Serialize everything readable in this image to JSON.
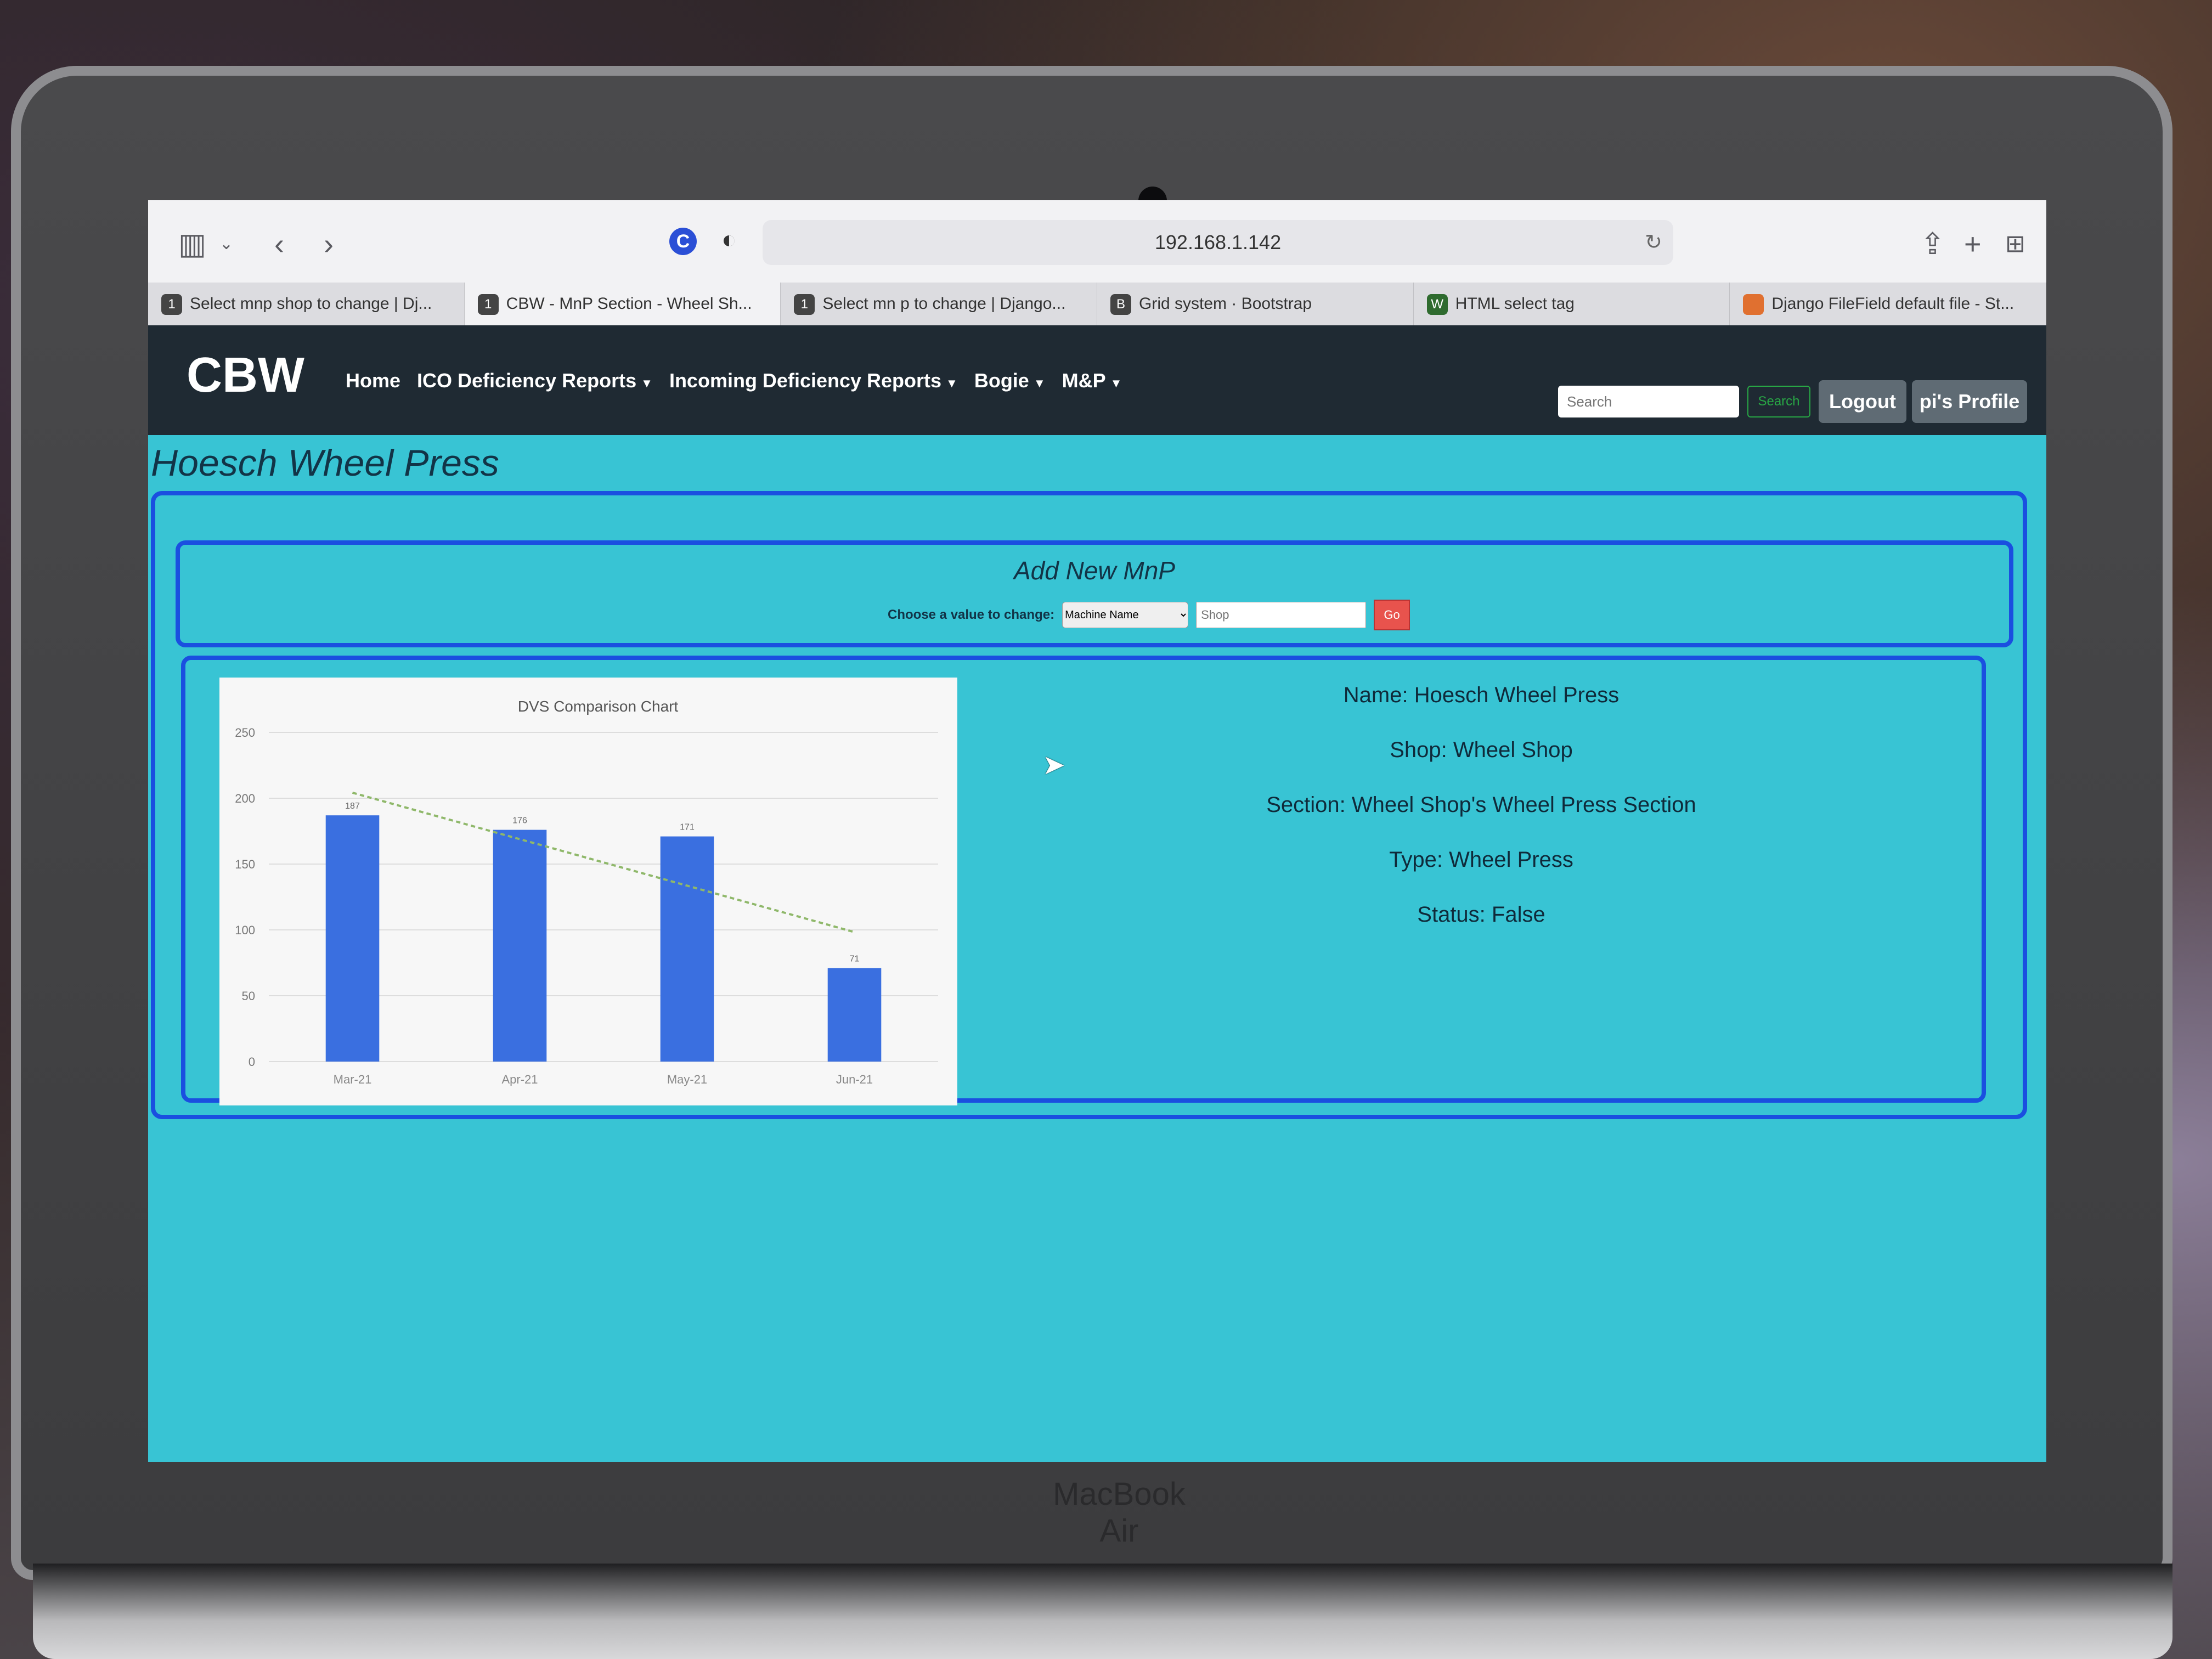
{
  "device": {
    "model_label": "MacBook Air"
  },
  "browser": {
    "address": "192.168.1.142",
    "icons": {
      "sidebar": "sidebar-icon",
      "back": "back-icon",
      "forward": "forward-icon",
      "reload": "reload-icon",
      "share": "share-icon",
      "new_tab": "plus-icon",
      "tab_overview": "grid-icon"
    },
    "tabs": [
      {
        "badge": "1",
        "title": "Select mnp shop to change | Dj..."
      },
      {
        "badge": "1",
        "title": "CBW - MnP Section - Wheel Sh..."
      },
      {
        "badge": "1",
        "title": "Select mn p to change | Django..."
      },
      {
        "badge": "B",
        "title": "Grid system · Bootstrap"
      },
      {
        "badge": "W",
        "title": "HTML select tag"
      },
      {
        "badge": "",
        "title": "Django FileField default file - St..."
      }
    ]
  },
  "navbar": {
    "brand": "CBW",
    "links": [
      {
        "label": "Home",
        "dropdown": false
      },
      {
        "label": "ICO Deficiency Reports",
        "dropdown": true
      },
      {
        "label": "Incoming Deficiency Reports",
        "dropdown": true
      },
      {
        "label": "Bogie",
        "dropdown": true
      },
      {
        "label": "M&P",
        "dropdown": true
      }
    ],
    "search_placeholder": "Search",
    "search_button": "Search",
    "logout": "Logout",
    "profile": "pi's Profile"
  },
  "page": {
    "title": "Hoesch Wheel Press",
    "add_section_title": "Add New MnP",
    "change_label": "Choose a value to change:",
    "select_value": "Machine Name",
    "input_placeholder": "Shop",
    "go_button": "Go"
  },
  "details": [
    "Name: Hoesch Wheel Press",
    "Shop: Wheel Shop",
    "Section: Wheel Shop's Wheel Press Section",
    "Type: Wheel Press",
    "Status: False"
  ],
  "colors": {
    "page_bg": "#38c4d4",
    "card_border": "#1a4fe0",
    "navbar_bg": "#1f2a33",
    "bar": "#3a6fe0",
    "trend": "#8fb86a"
  },
  "chart_data": {
    "type": "bar",
    "title": "DVS Comparison Chart",
    "categories": [
      "Mar-21",
      "Apr-21",
      "May-21",
      "Jun-21"
    ],
    "values": [
      187,
      176,
      171,
      71
    ],
    "data_labels": [
      "187",
      "176",
      "171",
      "71"
    ],
    "ylim": [
      0,
      250
    ],
    "yticks": [
      0,
      50,
      100,
      150,
      200,
      250
    ],
    "trendline": true,
    "grid": true,
    "xlabel": "",
    "ylabel": ""
  }
}
